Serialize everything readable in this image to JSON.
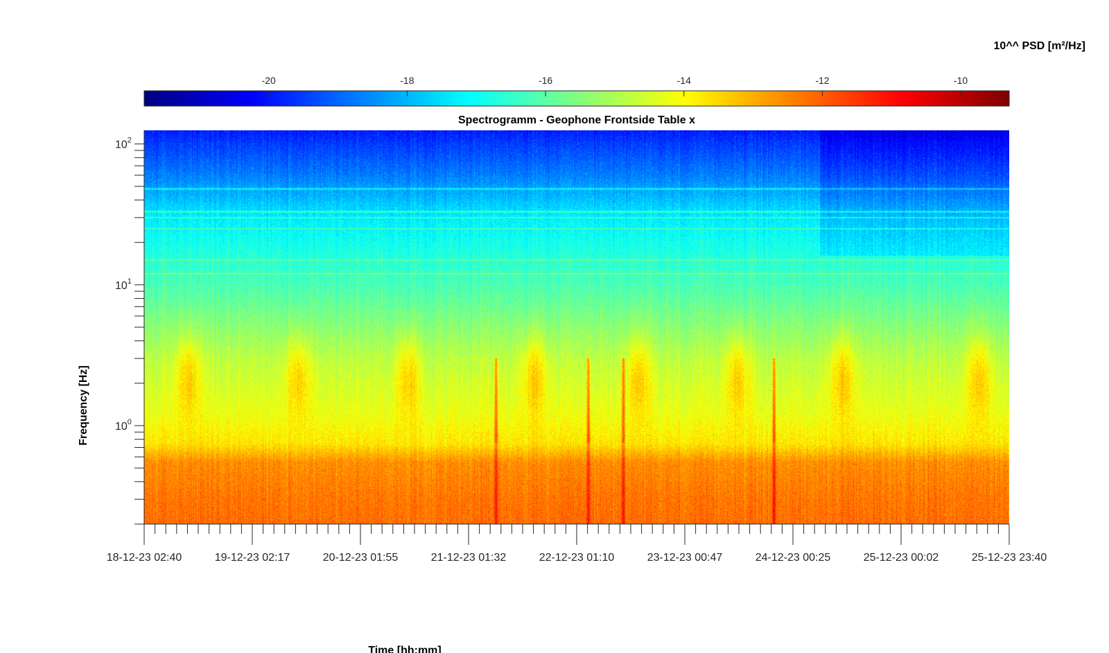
{
  "chart_data": {
    "type": "heatmap",
    "title": "Spectrogramm - Geophone Frontside Table x",
    "xlabel": "Time [hh:mm]",
    "ylabel": "Frequency [Hz]",
    "colorbar": {
      "label": "10^^ PSD [m²/Hz]",
      "range": [
        -21.8,
        -9.3
      ],
      "ticks": [
        "-20",
        "-18",
        "-16",
        "-14",
        "-12",
        "-10"
      ],
      "tick_values": [
        -20,
        -18,
        -16,
        -14,
        -12,
        -10
      ],
      "colormap": "jet",
      "placement": "top"
    },
    "x_ticks": [
      "18-12-23 02:40",
      "19-12-23 02:17",
      "20-12-23 01:55",
      "21-12-23 01:32",
      "22-12-23 01:10",
      "23-12-23 00:47",
      "24-12-23 00:25",
      "25-12-23 00:02",
      "25-12-23 23:40"
    ],
    "x_range": [
      "18-12-23 02:40",
      "25-12-23 23:40"
    ],
    "y_scale": "log",
    "ylim": [
      0.2,
      125
    ],
    "y_ticks": [
      {
        "base": "10",
        "exp": "0",
        "value": 1
      },
      {
        "base": "10",
        "exp": "1",
        "value": 10
      },
      {
        "base": "10",
        "exp": "2",
        "value": 100
      }
    ],
    "grid": false,
    "features": {
      "daily_bursts_position_days": [
        0.4,
        1.4,
        2.4,
        3.55,
        4.5,
        5.4,
        6.35,
        7.6
      ],
      "transient_events_days": [
        3.2,
        4.04,
        4.36,
        5.73
      ],
      "harmonic_lines_hz": [
        12,
        15,
        25,
        30,
        33,
        48
      ],
      "noise_level_at_0_3hz": -12.3,
      "noise_level_at_3hz": -14.8,
      "noise_level_at_30hz": -17.3,
      "noise_level_at_100hz": -19.5
    }
  }
}
